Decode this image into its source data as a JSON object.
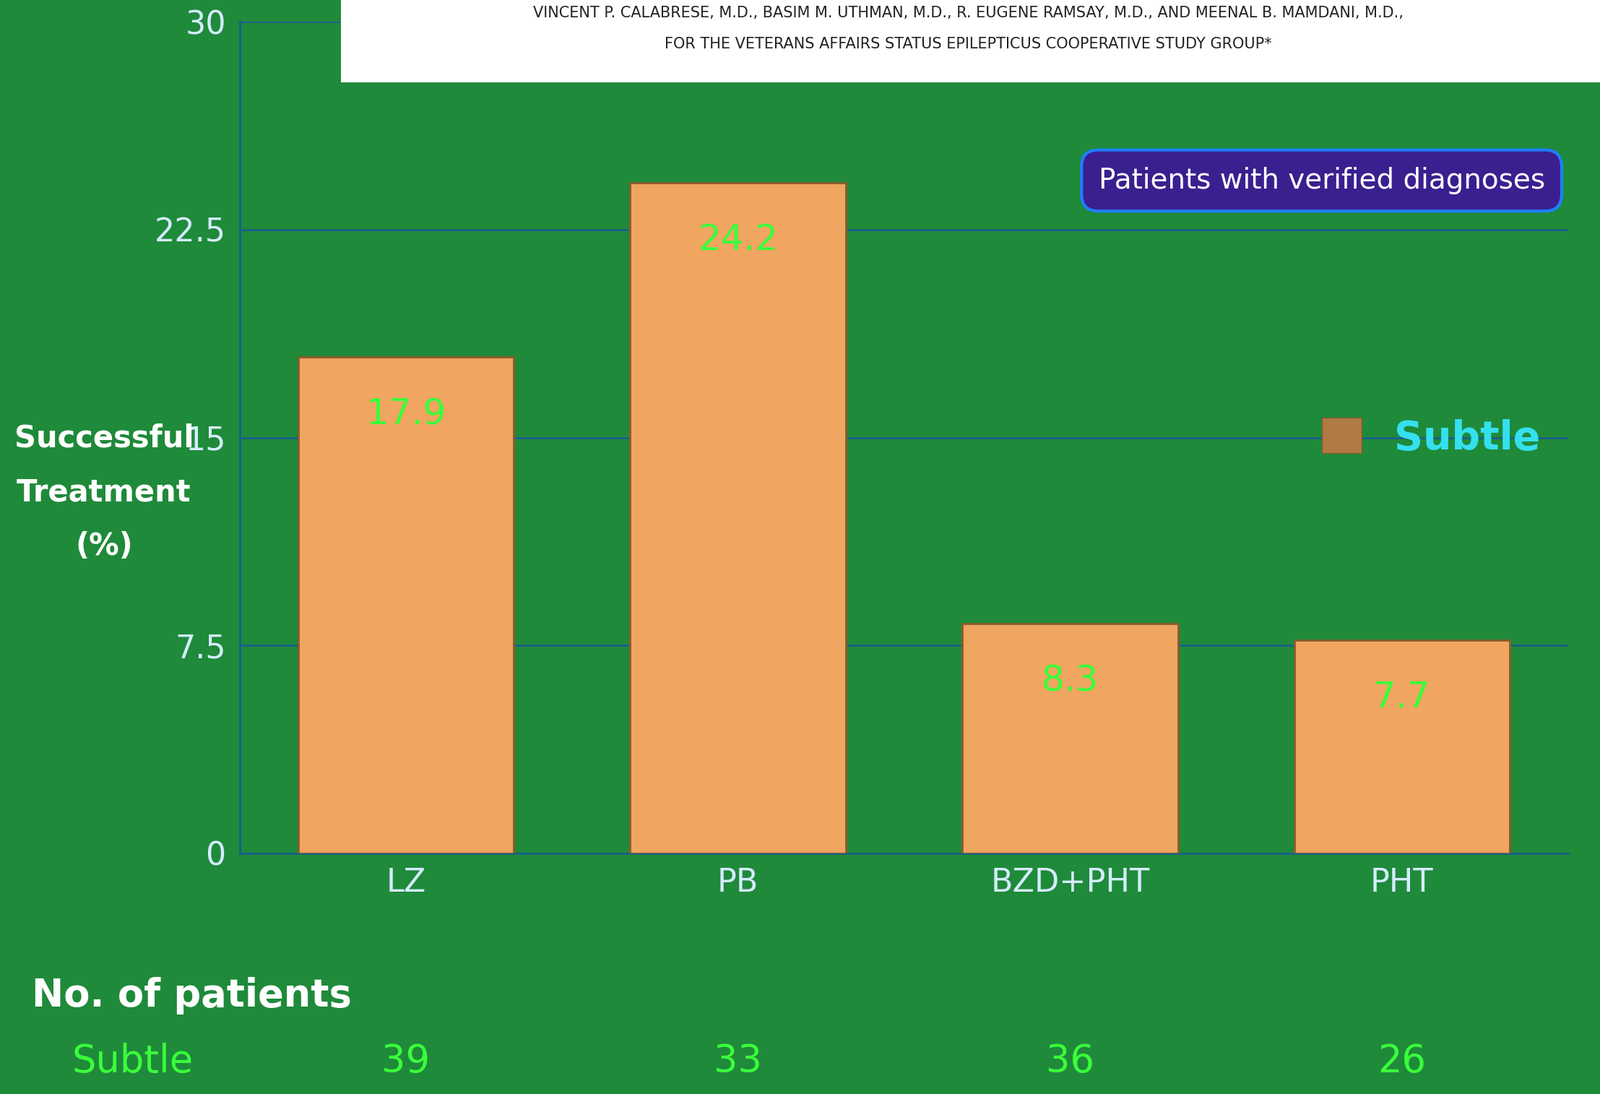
{
  "chart_data": {
    "type": "bar",
    "header": [
      "VINCENT P. CALABRESE, M.D., BASIM M. UTHMAN, M.D., R. EUGENE RAMSAY, M.D., AND MEENAL B. MAMDANI, M.D.,",
      "FOR THE VETERANS AFFAIRS STATUS EPILEPTICUS COOPERATIVE STUDY GROUP*"
    ],
    "annotation": "Patients with verified diagnoses",
    "ylabel": "Successful Treatment (%)",
    "categories": [
      "LZ",
      "PB",
      "BZD+PHT",
      "PHT"
    ],
    "series": [
      {
        "name": "Subtle",
        "color": "#f0a560",
        "values": [
          17.9,
          24.2,
          8.3,
          7.7
        ]
      }
    ],
    "ylim": [
      0,
      30
    ],
    "yticks": [
      0,
      7.5,
      15,
      22.5,
      30
    ],
    "grid": true,
    "data_labels": true,
    "legend": "center right",
    "patient_counts": {
      "title": "No. of patients",
      "name": "Subtle",
      "values": [
        39,
        33,
        36,
        26
      ]
    }
  }
}
